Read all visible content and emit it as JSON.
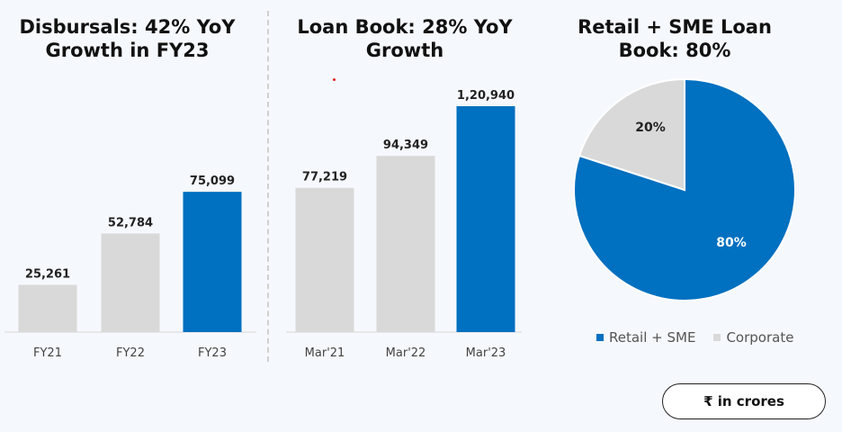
{
  "panels": [
    {
      "title": "Disbursals: 42% YoY\nGrowth in FY23"
    },
    {
      "title": "Loan Book: 28% YoY\nGrowth"
    },
    {
      "title": "Retail + SME Loan\nBook: 80%"
    }
  ],
  "units_label": "₹ in crores",
  "colors": {
    "highlight": "#0070c0",
    "base": "#d9d9d9"
  },
  "chart_data": [
    {
      "type": "bar",
      "title": "Disbursals: 42% YoY Growth in FY23",
      "categories": [
        "FY21",
        "FY22",
        "FY23"
      ],
      "values": [
        25261,
        52784,
        75099
      ],
      "value_labels": [
        "25,261",
        "52,784",
        "75,099"
      ],
      "highlight_index": 2,
      "ylim": [
        0,
        120940
      ]
    },
    {
      "type": "bar",
      "title": "Loan Book: 28% YoY Growth",
      "categories": [
        "Mar'21",
        "Mar'22",
        "Mar'23"
      ],
      "values": [
        77219,
        94349,
        120940
      ],
      "value_labels": [
        "77,219",
        "94,349",
        "1,20,940"
      ],
      "highlight_index": 2,
      "ylim": [
        0,
        120940
      ]
    },
    {
      "type": "pie",
      "title": "Retail + SME Loan Book: 80%",
      "labels": [
        "Retail + SME",
        "Corporate"
      ],
      "values": [
        80,
        20
      ],
      "value_labels": [
        "80%",
        "20%"
      ],
      "colors": [
        "#0070c0",
        "#d9d9d9"
      ],
      "legend": "bottom"
    }
  ]
}
